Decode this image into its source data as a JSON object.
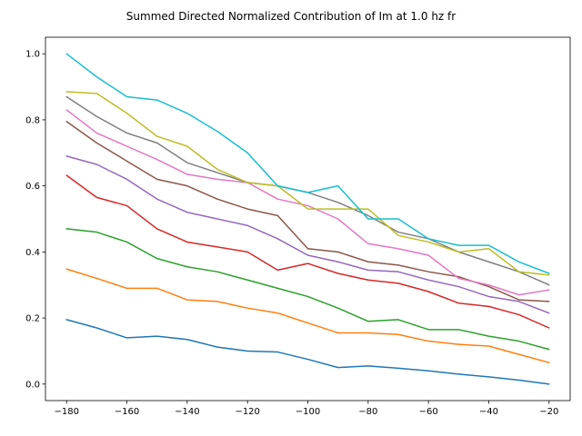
{
  "chart_data": {
    "type": "line",
    "title": "Summed Directed Normalized Contribution of Im at 1.0 hz fr",
    "xlabel": "",
    "ylabel": "",
    "xlim": [
      -187,
      -13
    ],
    "ylim": [
      -0.05,
      1.05
    ],
    "xticks": [
      -180,
      -160,
      -140,
      -120,
      -100,
      -80,
      -60,
      -40,
      -20
    ],
    "yticks": [
      0.0,
      0.2,
      0.4,
      0.6,
      0.8,
      1.0
    ],
    "grid": false,
    "x": [
      -180,
      -170,
      -160,
      -150,
      -140,
      -130,
      -120,
      -110,
      -100,
      -90,
      -80,
      -70,
      -60,
      -50,
      -40,
      -30,
      -20
    ],
    "series": [
      {
        "color": "#1f77b4",
        "values": [
          0.195,
          0.17,
          0.14,
          0.145,
          0.135,
          0.112,
          0.1,
          0.097,
          0.075,
          0.05,
          0.055,
          0.048,
          0.04,
          0.03,
          0.022,
          0.012,
          0.0
        ]
      },
      {
        "color": "#ff7f0e",
        "values": [
          0.348,
          0.32,
          0.29,
          0.29,
          0.255,
          0.25,
          0.23,
          0.215,
          0.185,
          0.155,
          0.155,
          0.15,
          0.13,
          0.12,
          0.115,
          0.09,
          0.065
        ]
      },
      {
        "color": "#2ca02c",
        "values": [
          0.47,
          0.46,
          0.43,
          0.38,
          0.355,
          0.34,
          0.315,
          0.29,
          0.265,
          0.23,
          0.19,
          0.195,
          0.165,
          0.165,
          0.145,
          0.13,
          0.105
        ]
      },
      {
        "color": "#d62728",
        "values": [
          0.632,
          0.565,
          0.54,
          0.47,
          0.43,
          0.415,
          0.4,
          0.345,
          0.365,
          0.335,
          0.315,
          0.305,
          0.28,
          0.245,
          0.235,
          0.21,
          0.17
        ]
      },
      {
        "color": "#9467bd",
        "values": [
          0.69,
          0.665,
          0.62,
          0.56,
          0.52,
          0.5,
          0.48,
          0.44,
          0.39,
          0.37,
          0.345,
          0.34,
          0.315,
          0.295,
          0.265,
          0.25,
          0.215
        ]
      },
      {
        "color": "#8c564b",
        "values": [
          0.795,
          0.73,
          0.675,
          0.62,
          0.6,
          0.56,
          0.53,
          0.51,
          0.41,
          0.4,
          0.37,
          0.36,
          0.34,
          0.325,
          0.295,
          0.255,
          0.25
        ]
      },
      {
        "color": "#e377c2",
        "values": [
          0.83,
          0.76,
          0.72,
          0.68,
          0.635,
          0.62,
          0.61,
          0.56,
          0.54,
          0.5,
          0.425,
          0.41,
          0.39,
          0.32,
          0.3,
          0.27,
          0.285
        ]
      },
      {
        "color": "#7f7f7f",
        "values": [
          0.87,
          0.81,
          0.76,
          0.73,
          0.67,
          0.64,
          0.61,
          0.6,
          0.58,
          0.55,
          0.51,
          0.46,
          0.44,
          0.4,
          0.37,
          0.34,
          0.3
        ]
      },
      {
        "color": "#bcbd22",
        "values": [
          0.885,
          0.88,
          0.82,
          0.75,
          0.72,
          0.65,
          0.61,
          0.6,
          0.53,
          0.53,
          0.53,
          0.45,
          0.43,
          0.4,
          0.41,
          0.34,
          0.33
        ]
      },
      {
        "color": "#17becf",
        "values": [
          1.0,
          0.93,
          0.87,
          0.86,
          0.82,
          0.765,
          0.7,
          0.6,
          0.58,
          0.6,
          0.5,
          0.5,
          0.44,
          0.42,
          0.42,
          0.37,
          0.335
        ]
      }
    ]
  }
}
